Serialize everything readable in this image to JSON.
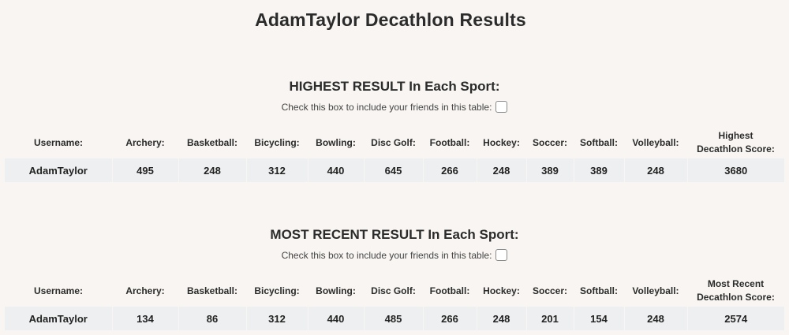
{
  "page": {
    "title": "AdamTaylor Decathlon Results"
  },
  "highest": {
    "heading": "HIGHEST RESULT In Each Sport:",
    "friends_label": "Check this box to include your friends in this table:",
    "columns": [
      "Username:",
      "Archery:",
      "Basketball:",
      "Bicycling:",
      "Bowling:",
      "Disc Golf:",
      "Football:",
      "Hockey:",
      "Soccer:",
      "Softball:",
      "Volleyball:"
    ],
    "score_header_line1": "Highest",
    "score_header_line2": "Decathlon Score:",
    "row": {
      "username": "AdamTaylor",
      "archery": "495",
      "basketball": "248",
      "bicycling": "312",
      "bowling": "440",
      "disc_golf": "645",
      "football": "266",
      "hockey": "248",
      "soccer": "389",
      "softball": "389",
      "volleyball": "248",
      "score": "3680"
    }
  },
  "recent": {
    "heading": "MOST RECENT RESULT In Each Sport:",
    "friends_label": "Check this box to include your friends in this table:",
    "columns": [
      "Username:",
      "Archery:",
      "Basketball:",
      "Bicycling:",
      "Bowling:",
      "Disc Golf:",
      "Football:",
      "Hockey:",
      "Soccer:",
      "Softball:",
      "Volleyball:"
    ],
    "score_header_line1": "Most Recent",
    "score_header_line2": "Decathlon Score:",
    "row": {
      "username": "AdamTaylor",
      "archery": "134",
      "basketball": "86",
      "bicycling": "312",
      "bowling": "440",
      "disc_golf": "485",
      "football": "266",
      "hockey": "248",
      "soccer": "201",
      "softball": "154",
      "volleyball": "248",
      "score": "2574"
    }
  }
}
